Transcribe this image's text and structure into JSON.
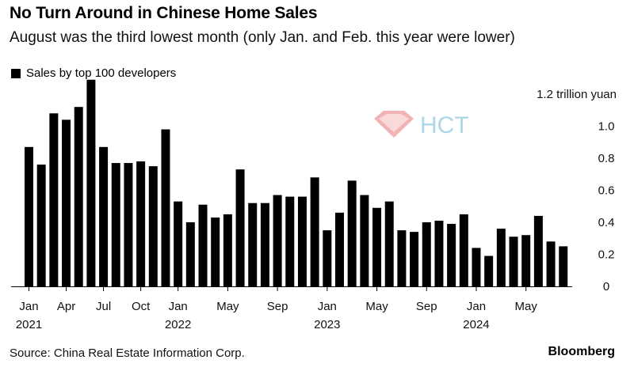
{
  "title": "No Turn Around in Chinese Home Sales",
  "subtitle": "August was the third lowest month (only Jan. and Feb. this year were lower)",
  "source": "Source:  China Real Estate Information Corp.",
  "brand": "Bloomberg",
  "colors": {
    "bar": "#000000",
    "axis": "#000000",
    "watermark_red": "#e0474c",
    "watermark_blue": "#6ab7d8"
  },
  "watermark": {
    "text": "HCT",
    "icon": "diamond-logo-icon"
  },
  "chart_data": {
    "type": "bar",
    "legend": {
      "label": "Sales by top 100 developers",
      "position": "top-left"
    },
    "unit_label": "1.2 trillion yuan",
    "y_axis": {
      "position": "right",
      "ylim": [
        0,
        1.2
      ],
      "ticks": [
        0,
        0.2,
        0.4,
        0.6,
        0.8,
        1.0
      ],
      "tick_labels": [
        "0",
        "0.2",
        "0.4",
        "0.6",
        "0.8",
        "1.0"
      ]
    },
    "grid": false,
    "x_tick_labels": [
      {
        "month": "Jan",
        "year": "2021",
        "index": 0
      },
      {
        "month": "Apr",
        "index": 3
      },
      {
        "month": "Jul",
        "index": 6
      },
      {
        "month": "Oct",
        "index": 9
      },
      {
        "month": "Jan",
        "year": "2022",
        "index": 12
      },
      {
        "month": "May",
        "index": 16
      },
      {
        "month": "Sep",
        "index": 20
      },
      {
        "month": "Jan",
        "year": "2023",
        "index": 24
      },
      {
        "month": "May",
        "index": 28
      },
      {
        "month": "Sep",
        "index": 32
      },
      {
        "month": "Jan",
        "year": "2024",
        "index": 36
      },
      {
        "month": "May",
        "index": 40
      }
    ],
    "categories": [
      "2021-01",
      "2021-02",
      "2021-03",
      "2021-04",
      "2021-05",
      "2021-06",
      "2021-07",
      "2021-08",
      "2021-09",
      "2021-10",
      "2021-11",
      "2021-12",
      "2022-01",
      "2022-02",
      "2022-03",
      "2022-04",
      "2022-05",
      "2022-06",
      "2022-07",
      "2022-08",
      "2022-09",
      "2022-10",
      "2022-11",
      "2022-12",
      "2023-01",
      "2023-02",
      "2023-03",
      "2023-04",
      "2023-05",
      "2023-06",
      "2023-07",
      "2023-08",
      "2023-09",
      "2023-10",
      "2023-11",
      "2023-12",
      "2024-01",
      "2024-02",
      "2024-03",
      "2024-04",
      "2024-05",
      "2024-06",
      "2024-07",
      "2024-08"
    ],
    "values": [
      0.87,
      0.76,
      1.08,
      1.04,
      1.12,
      1.29,
      0.87,
      0.77,
      0.77,
      0.78,
      0.75,
      0.98,
      0.53,
      0.4,
      0.51,
      0.43,
      0.45,
      0.73,
      0.52,
      0.52,
      0.57,
      0.56,
      0.56,
      0.68,
      0.35,
      0.46,
      0.66,
      0.57,
      0.49,
      0.53,
      0.35,
      0.34,
      0.4,
      0.41,
      0.39,
      0.45,
      0.24,
      0.19,
      0.36,
      0.31,
      0.32,
      0.44,
      0.28,
      0.25
    ]
  }
}
